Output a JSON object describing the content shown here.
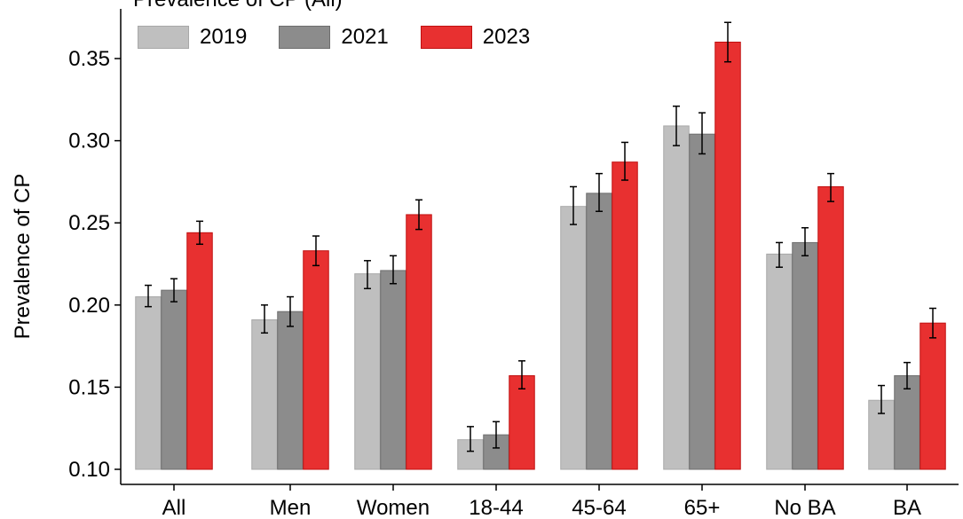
{
  "chart_data": {
    "type": "bar",
    "title": "Prevalence of CP (All)",
    "ylabel": "Prevalence of CP",
    "xlabel": "",
    "ylim": [
      0.1,
      0.37
    ],
    "yticks": [
      "0.10",
      "0.15",
      "0.20",
      "0.25",
      "0.30",
      "0.35"
    ],
    "categories": [
      "All",
      "Men",
      "Women",
      "18-44",
      "45-64",
      "65+",
      "No BA",
      "BA"
    ],
    "legend_position": "top-left",
    "grid": false,
    "series": [
      {
        "name": "2019",
        "color": "#bfbfbf",
        "values": [
          0.205,
          0.191,
          0.219,
          0.118,
          0.26,
          0.309,
          0.231,
          0.142
        ],
        "err_low": [
          0.199,
          0.183,
          0.21,
          0.111,
          0.249,
          0.297,
          0.223,
          0.134
        ],
        "err_high": [
          0.212,
          0.2,
          0.227,
          0.126,
          0.272,
          0.321,
          0.238,
          0.151
        ]
      },
      {
        "name": "2021",
        "color": "#8c8c8c",
        "values": [
          0.209,
          0.196,
          0.221,
          0.121,
          0.268,
          0.304,
          0.238,
          0.157
        ],
        "err_low": [
          0.202,
          0.187,
          0.213,
          0.113,
          0.257,
          0.292,
          0.23,
          0.149
        ],
        "err_high": [
          0.216,
          0.205,
          0.23,
          0.129,
          0.28,
          0.317,
          0.247,
          0.165
        ]
      },
      {
        "name": "2023",
        "color": "#e83030",
        "values": [
          0.244,
          0.233,
          0.255,
          0.157,
          0.287,
          0.36,
          0.272,
          0.189
        ],
        "err_low": [
          0.237,
          0.224,
          0.246,
          0.149,
          0.276,
          0.348,
          0.263,
          0.18
        ],
        "err_high": [
          0.251,
          0.242,
          0.264,
          0.166,
          0.299,
          0.372,
          0.28,
          0.198
        ]
      }
    ]
  }
}
